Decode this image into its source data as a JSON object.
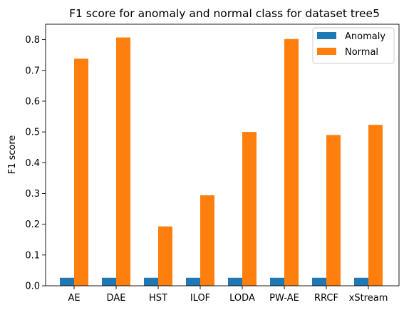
{
  "chart_data": {
    "type": "bar",
    "title": "F1 score for anomaly and normal class for dataset tree5",
    "xlabel": "",
    "ylabel": "F1 score",
    "categories": [
      "AE",
      "DAE",
      "HST",
      "ILOF",
      "LODA",
      "PW-AE",
      "RRCF",
      "xStream"
    ],
    "series": [
      {
        "name": "Anomaly",
        "color": "#1f77b4",
        "values": [
          0.026,
          0.026,
          0.026,
          0.026,
          0.026,
          0.026,
          0.026,
          0.026
        ]
      },
      {
        "name": "Normal",
        "color": "#ff7f0e",
        "values": [
          0.738,
          0.807,
          0.193,
          0.294,
          0.5,
          0.802,
          0.49,
          0.523
        ]
      }
    ],
    "ylim": [
      0,
      0.85
    ],
    "yticks": [
      "0.0",
      "0.1",
      "0.2",
      "0.3",
      "0.4",
      "0.5",
      "0.6",
      "0.7",
      "0.8"
    ],
    "legend_position": "top-right",
    "grid": false
  }
}
